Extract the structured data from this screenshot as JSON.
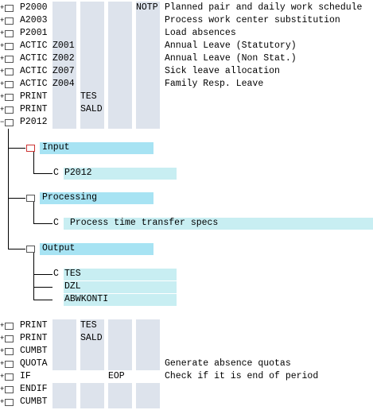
{
  "top_rows": [
    {
      "op": "P2000",
      "col4": "NOTP",
      "text": "Planned pair and daily work schedule"
    },
    {
      "op": "A2003",
      "text": "Process work center substitution"
    },
    {
      "op": "P2001",
      "text": "Load absences"
    },
    {
      "op": "ACTIC",
      "col1": "Z001",
      "text": "Annual Leave (Statutory)"
    },
    {
      "op": "ACTIC",
      "col1": "Z002",
      "text": "Annual Leave (Non Stat.)"
    },
    {
      "op": "ACTIC",
      "col1": "Z007",
      "text": "Sick leave allocation"
    },
    {
      "op": "ACTIC",
      "col1": "Z004",
      "text": "Family Resp. Leave"
    },
    {
      "op": "PRINT",
      "col2": "TES"
    },
    {
      "op": "PRINT",
      "col2": "SALD"
    },
    {
      "op": "P2012"
    }
  ],
  "tree": [
    {
      "label": "Input",
      "children": [
        "P2012"
      ]
    },
    {
      "label": "Processing",
      "children": [
        "Process time transfer specs"
      ]
    },
    {
      "label": "Output",
      "children": [
        "TES",
        "DZL",
        "ABWKONTI"
      ]
    }
  ],
  "bottom_rows": [
    {
      "op": "PRINT",
      "col2": "TES"
    },
    {
      "op": "PRINT",
      "col2": "SALD"
    },
    {
      "op": "CUMBT"
    },
    {
      "op": "QUOTA",
      "text": "Generate absence quotas"
    },
    {
      "op": "IF",
      "col3": "EOP",
      "text": "Check if it is end of period"
    },
    {
      "op": "ENDIF"
    },
    {
      "op": "CUMBT"
    }
  ]
}
